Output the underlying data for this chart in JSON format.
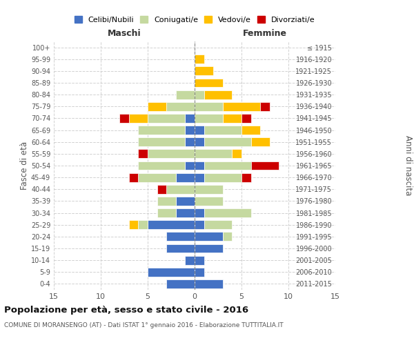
{
  "age_groups": [
    "0-4",
    "5-9",
    "10-14",
    "15-19",
    "20-24",
    "25-29",
    "30-34",
    "35-39",
    "40-44",
    "45-49",
    "50-54",
    "55-59",
    "60-64",
    "65-69",
    "70-74",
    "75-79",
    "80-84",
    "85-89",
    "90-94",
    "95-99",
    "100+"
  ],
  "birth_years": [
    "2011-2015",
    "2006-2010",
    "2001-2005",
    "1996-2000",
    "1991-1995",
    "1986-1990",
    "1981-1985",
    "1976-1980",
    "1971-1975",
    "1966-1970",
    "1961-1965",
    "1956-1960",
    "1951-1955",
    "1946-1950",
    "1941-1945",
    "1936-1940",
    "1931-1935",
    "1926-1930",
    "1921-1925",
    "1916-1920",
    "≤ 1915"
  ],
  "maschi": {
    "celibi": [
      3,
      5,
      1,
      3,
      3,
      5,
      2,
      2,
      0,
      2,
      1,
      0,
      1,
      1,
      1,
      0,
      0,
      0,
      0,
      0,
      0
    ],
    "coniugati": [
      0,
      0,
      0,
      0,
      0,
      1,
      2,
      2,
      3,
      4,
      5,
      5,
      5,
      5,
      4,
      3,
      2,
      0,
      0,
      0,
      0
    ],
    "vedovi": [
      0,
      0,
      0,
      0,
      0,
      1,
      0,
      0,
      0,
      0,
      0,
      0,
      0,
      0,
      2,
      2,
      0,
      0,
      0,
      0,
      0
    ],
    "divorziati": [
      0,
      0,
      0,
      0,
      0,
      0,
      0,
      0,
      1,
      1,
      0,
      1,
      0,
      0,
      1,
      0,
      0,
      0,
      0,
      0,
      0
    ]
  },
  "femmine": {
    "nubili": [
      3,
      1,
      1,
      3,
      3,
      1,
      1,
      0,
      0,
      1,
      1,
      0,
      1,
      1,
      0,
      0,
      0,
      0,
      0,
      0,
      0
    ],
    "coniugate": [
      0,
      0,
      0,
      0,
      1,
      3,
      5,
      3,
      3,
      4,
      5,
      4,
      5,
      4,
      3,
      3,
      1,
      0,
      0,
      0,
      0
    ],
    "vedove": [
      0,
      0,
      0,
      0,
      0,
      0,
      0,
      0,
      0,
      0,
      0,
      1,
      2,
      2,
      2,
      4,
      3,
      3,
      2,
      1,
      0
    ],
    "divorziate": [
      0,
      0,
      0,
      0,
      0,
      0,
      0,
      0,
      0,
      1,
      3,
      0,
      0,
      0,
      1,
      1,
      0,
      0,
      0,
      0,
      0
    ]
  },
  "colors": {
    "celibi_nubili": "#4472C4",
    "coniugati_e": "#c5d9a0",
    "vedovi_e": "#ffc000",
    "divorziati_e": "#cc0000"
  },
  "xlim": 15,
  "title": "Popolazione per età, sesso e stato civile - 2016",
  "subtitle": "COMUNE DI MORANSENGO (AT) - Dati ISTAT 1° gennaio 2016 - Elaborazione TUTTITALIA.IT",
  "xlabel_left": "Maschi",
  "xlabel_right": "Femmine",
  "ylabel_left": "Fasce di età",
  "ylabel_right": "Anni di nascita",
  "legend_labels": [
    "Celibi/Nubili",
    "Coniugati/e",
    "Vedovi/e",
    "Divorziati/e"
  ],
  "background_color": "#ffffff",
  "grid_color": "#cccccc",
  "bar_height": 0.75
}
